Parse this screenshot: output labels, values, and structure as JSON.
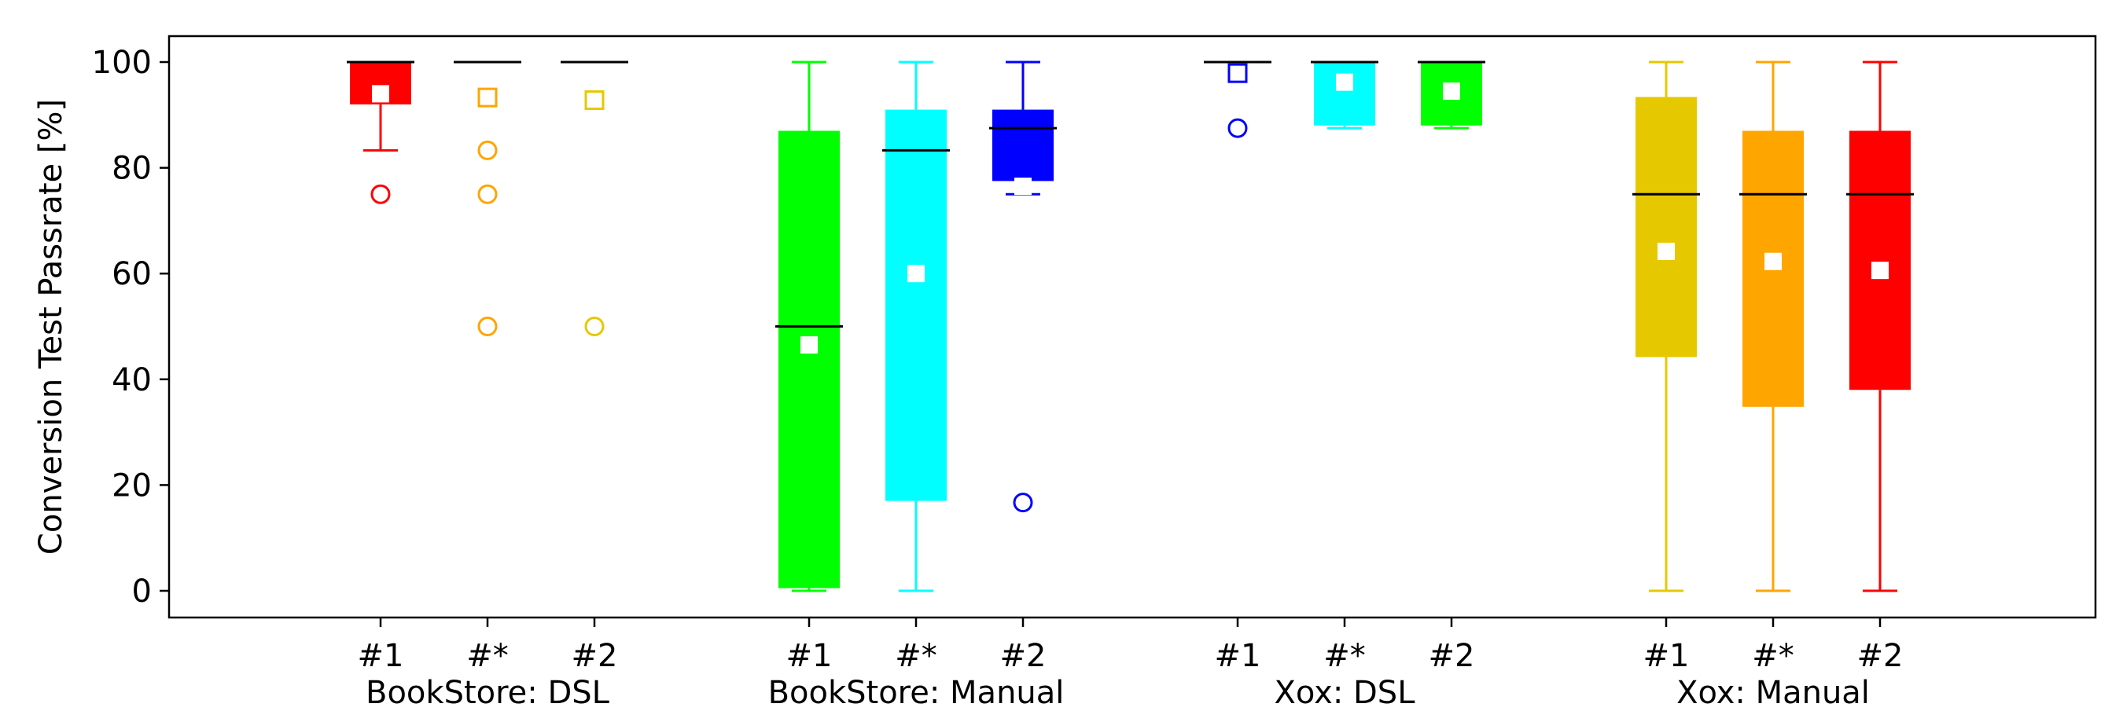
{
  "chart_data": {
    "type": "box",
    "ylabel": "Conversion Test Passrate [%]",
    "ylim": [
      -5,
      105
    ],
    "yticks": [
      0,
      20,
      40,
      60,
      80,
      100
    ],
    "grid": false,
    "groups": [
      {
        "label": "BookStore: DSL",
        "boxes": [
          {
            "label": "#1",
            "color": "#ff0000",
            "q1": 92,
            "median": 100,
            "q3": 100,
            "whisker_low": 83.3,
            "whisker_high": 100,
            "mean": 94,
            "outliers": [
              75
            ],
            "mean_outlier": false
          },
          {
            "label": "#*",
            "color": "#ffa500",
            "q1": 100,
            "median": 100,
            "q3": 100,
            "whisker_low": 100,
            "whisker_high": 100,
            "mean": 93.3,
            "outliers": [
              83.3,
              75,
              50
            ],
            "mean_outlier": true
          },
          {
            "label": "#2",
            "color": "#e6c800",
            "q1": 100,
            "median": 100,
            "q3": 100,
            "whisker_low": 100,
            "whisker_high": 100,
            "mean": 92.8,
            "outliers": [
              50
            ],
            "mean_outlier": true
          }
        ]
      },
      {
        "label": "BookStore: Manual",
        "boxes": [
          {
            "label": "#1",
            "color": "#00ff00",
            "q1": 0.5,
            "median": 50,
            "q3": 87,
            "whisker_low": 0,
            "whisker_high": 100,
            "mean": 46.5,
            "outliers": [],
            "mean_outlier": false
          },
          {
            "label": "#*",
            "color": "#00ffff",
            "q1": 17,
            "median": 83.3,
            "q3": 91,
            "whisker_low": 0,
            "whisker_high": 100,
            "mean": 60,
            "outliers": [],
            "mean_outlier": false
          },
          {
            "label": "#2",
            "color": "#0000ff",
            "q1": 77.5,
            "median": 87.5,
            "q3": 91,
            "whisker_low": 75,
            "whisker_high": 100,
            "mean": 76.5,
            "outliers": [
              16.7
            ],
            "mean_outlier": false
          }
        ]
      },
      {
        "label": "Xox: DSL",
        "boxes": [
          {
            "label": "#1",
            "color": "#0000ff",
            "q1": 100,
            "median": 100,
            "q3": 100,
            "whisker_low": 100,
            "whisker_high": 100,
            "mean": 97.9,
            "outliers": [
              87.5
            ],
            "mean_outlier": true
          },
          {
            "label": "#*",
            "color": "#00ffff",
            "q1": 88,
            "median": 100,
            "q3": 100,
            "whisker_low": 87.5,
            "whisker_high": 100,
            "mean": 96.2,
            "outliers": [],
            "mean_outlier": false
          },
          {
            "label": "#2",
            "color": "#00ff00",
            "q1": 88,
            "median": 100,
            "q3": 100,
            "whisker_low": 87.5,
            "whisker_high": 100,
            "mean": 94.5,
            "outliers": [],
            "mean_outlier": false
          }
        ]
      },
      {
        "label": "Xox: Manual",
        "boxes": [
          {
            "label": "#1",
            "color": "#e6c800",
            "q1": 44.2,
            "median": 75,
            "q3": 93.4,
            "whisker_low": 0,
            "whisker_high": 100,
            "mean": 64.2,
            "outliers": [],
            "mean_outlier": false
          },
          {
            "label": "#*",
            "color": "#ffa500",
            "q1": 34.8,
            "median": 75,
            "q3": 87,
            "whisker_low": 0,
            "whisker_high": 100,
            "mean": 62.3,
            "outliers": [],
            "mean_outlier": false
          },
          {
            "label": "#2",
            "color": "#ff0000",
            "q1": 38,
            "median": 75,
            "q3": 87,
            "whisker_low": 0,
            "whisker_high": 100,
            "mean": 60.6,
            "outliers": [],
            "mean_outlier": false
          }
        ]
      }
    ]
  }
}
